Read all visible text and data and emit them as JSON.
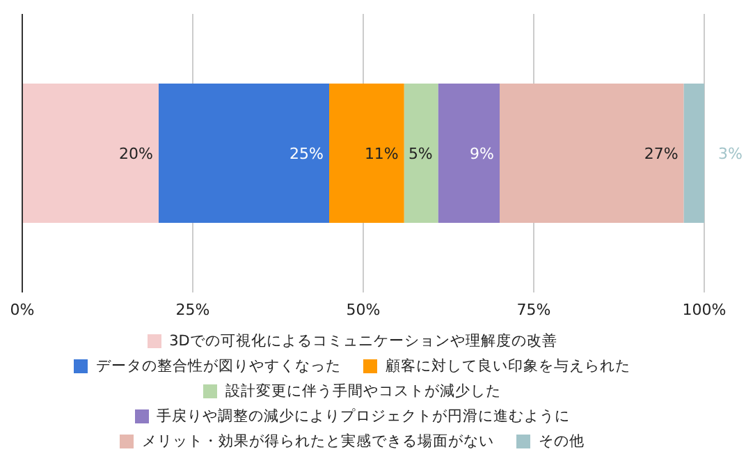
{
  "chart_data": {
    "type": "bar",
    "orientation": "horizontal",
    "stacked": true,
    "categories": [
      null
    ],
    "series": [
      {
        "name": "3Dでの可視化によるコミュニケーションや理解度の改善",
        "color": "#f4cccc",
        "values": [
          20
        ],
        "value_labels": [
          "20%"
        ]
      },
      {
        "name": "データの整合性が図りやすくなった",
        "color": "#3c78d8",
        "values": [
          25
        ],
        "value_labels": [
          "25%"
        ]
      },
      {
        "name": "顧客に対して良い印象を与えられた",
        "color": "#ff9900",
        "values": [
          11
        ],
        "value_labels": [
          "11%"
        ]
      },
      {
        "name": "設計変更に伴う手間やコストが減少した",
        "color": "#b6d7a8",
        "values": [
          5
        ],
        "value_labels": [
          "5%"
        ]
      },
      {
        "name": "手戻りや調整の減少によりプロジェクトが円滑に進むように",
        "color": "#8e7cc3",
        "values": [
          9
        ],
        "value_labels": [
          "9%"
        ]
      },
      {
        "name": "メリット・効果が得られたと実感できる場面がない",
        "color": "#e6b8af",
        "values": [
          27
        ],
        "value_labels": [
          "27%"
        ]
      },
      {
        "name": "その他",
        "color": "#a2c4c9",
        "values": [
          3
        ],
        "value_labels": [
          "3%"
        ]
      }
    ],
    "xlim": [
      0,
      100
    ],
    "xticks": [
      {
        "value": 0,
        "label": "0%"
      },
      {
        "value": 25,
        "label": "25%"
      },
      {
        "value": 50,
        "label": "50%"
      },
      {
        "value": 75,
        "label": "75%"
      },
      {
        "value": 100,
        "label": "100%"
      }
    ],
    "grid": "x",
    "legend": "bottom"
  }
}
